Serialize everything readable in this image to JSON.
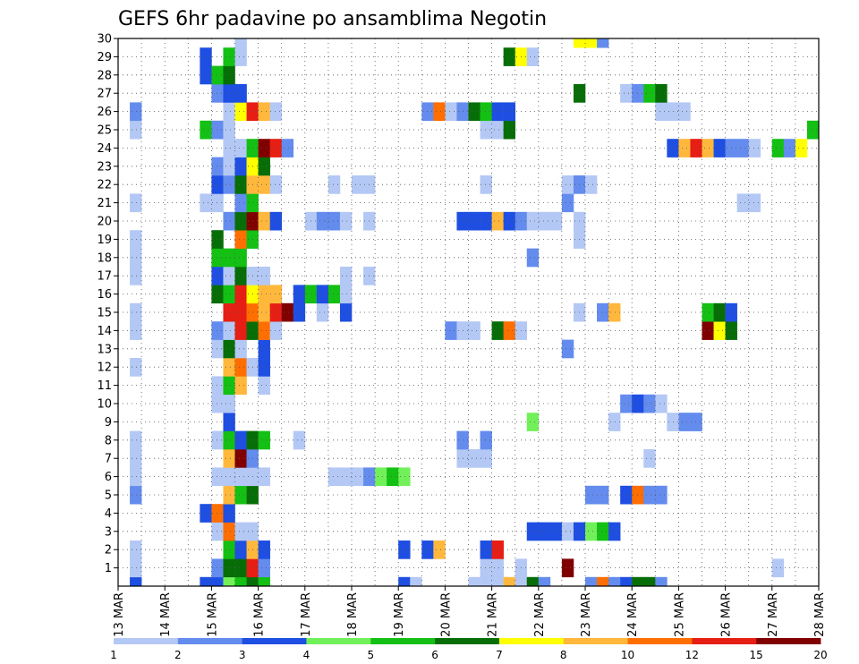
{
  "chart_data": {
    "type": "heatmap",
    "title": "GEFS 6hr padavine po ansamblima Negotin",
    "x_labels": [
      "13 MAR",
      "14 MAR",
      "15 MAR",
      "16 MAR",
      "17 MAR",
      "18 MAR",
      "19 MAR",
      "20 MAR",
      "21 MAR",
      "22 MAR",
      "23 MAR",
      "24 MAR",
      "25 MAR",
      "26 MAR",
      "27 MAR",
      "28 MAR"
    ],
    "y_labels": [
      "1",
      "2",
      "3",
      "4",
      "5",
      "6",
      "7",
      "8",
      "9",
      "10",
      "11",
      "12",
      "13",
      "14",
      "15",
      "16",
      "17",
      "18",
      "19",
      "20",
      "21",
      "22",
      "23",
      "24",
      "25",
      "26",
      "27",
      "28",
      "29",
      "30"
    ],
    "ylim": [
      0,
      30
    ],
    "steps_per_day": 4,
    "grid": true,
    "colorbar": {
      "labels": [
        "1",
        "2",
        "3",
        "4",
        "5",
        "6",
        "7",
        "8",
        "10",
        "12",
        "15",
        "20"
      ],
      "colors": [
        "#b4c8f5",
        "#648cee",
        "#1e4fe2",
        "#72f05a",
        "#13c013",
        "#076e07",
        "#ffff00",
        "#ffb83c",
        "#ff6e00",
        "#e61e14",
        "#800000"
      ]
    },
    "cells": [
      [
        1,
        0,
        3
      ],
      [
        7,
        0,
        3
      ],
      [
        8,
        0,
        3
      ],
      [
        9,
        0,
        4
      ],
      [
        10,
        0,
        5
      ],
      [
        11,
        0,
        6
      ],
      [
        12,
        0,
        5
      ],
      [
        24,
        0,
        3
      ],
      [
        25,
        0,
        1
      ],
      [
        30,
        0,
        1
      ],
      [
        31,
        0,
        1
      ],
      [
        32,
        0,
        1
      ],
      [
        33,
        0,
        8
      ],
      [
        34,
        0,
        1
      ],
      [
        35,
        0,
        6
      ],
      [
        36,
        0,
        2
      ],
      [
        40,
        0,
        2
      ],
      [
        41,
        0,
        9
      ],
      [
        42,
        0,
        2
      ],
      [
        43,
        0,
        3
      ],
      [
        44,
        0,
        6
      ],
      [
        45,
        0,
        6
      ],
      [
        46,
        0,
        2
      ],
      [
        1,
        1,
        1
      ],
      [
        8,
        1,
        2
      ],
      [
        9,
        1,
        6
      ],
      [
        10,
        1,
        6
      ],
      [
        11,
        1,
        10
      ],
      [
        12,
        1,
        2
      ],
      [
        31,
        1,
        1
      ],
      [
        32,
        1,
        1
      ],
      [
        34,
        1,
        1
      ],
      [
        38,
        1,
        11
      ],
      [
        56,
        1,
        1
      ],
      [
        1,
        2,
        1
      ],
      [
        9,
        2,
        5
      ],
      [
        10,
        2,
        3
      ],
      [
        11,
        2,
        8
      ],
      [
        12,
        2,
        3
      ],
      [
        24,
        2,
        3
      ],
      [
        26,
        2,
        3
      ],
      [
        27,
        2,
        8
      ],
      [
        31,
        2,
        3
      ],
      [
        32,
        2,
        10
      ],
      [
        8,
        3,
        1
      ],
      [
        9,
        3,
        9
      ],
      [
        10,
        3,
        1
      ],
      [
        11,
        3,
        1
      ],
      [
        35,
        3,
        3
      ],
      [
        36,
        3,
        3
      ],
      [
        37,
        3,
        3
      ],
      [
        38,
        3,
        1
      ],
      [
        39,
        3,
        3
      ],
      [
        40,
        3,
        4
      ],
      [
        41,
        3,
        5
      ],
      [
        42,
        3,
        3
      ],
      [
        7,
        4,
        3
      ],
      [
        8,
        4,
        9
      ],
      [
        9,
        4,
        3
      ],
      [
        1,
        5,
        2
      ],
      [
        9,
        5,
        8
      ],
      [
        10,
        5,
        5
      ],
      [
        11,
        5,
        6
      ],
      [
        40,
        5,
        2
      ],
      [
        41,
        5,
        2
      ],
      [
        43,
        5,
        3
      ],
      [
        44,
        5,
        9
      ],
      [
        45,
        5,
        2
      ],
      [
        46,
        5,
        2
      ],
      [
        1,
        6,
        1
      ],
      [
        8,
        6,
        1
      ],
      [
        9,
        6,
        1
      ],
      [
        10,
        6,
        1
      ],
      [
        11,
        6,
        1
      ],
      [
        12,
        6,
        1
      ],
      [
        18,
        6,
        1
      ],
      [
        19,
        6,
        1
      ],
      [
        20,
        6,
        1
      ],
      [
        21,
        6,
        2
      ],
      [
        22,
        6,
        4
      ],
      [
        23,
        6,
        5
      ],
      [
        24,
        6,
        4
      ],
      [
        1,
        7,
        1
      ],
      [
        9,
        7,
        8
      ],
      [
        10,
        7,
        11
      ],
      [
        11,
        7,
        2
      ],
      [
        29,
        7,
        1
      ],
      [
        30,
        7,
        1
      ],
      [
        31,
        7,
        1
      ],
      [
        45,
        7,
        1
      ],
      [
        1,
        8,
        1
      ],
      [
        8,
        8,
        1
      ],
      [
        9,
        8,
        5
      ],
      [
        10,
        8,
        3
      ],
      [
        11,
        8,
        6
      ],
      [
        12,
        8,
        5
      ],
      [
        15,
        8,
        1
      ],
      [
        29,
        8,
        2
      ],
      [
        31,
        8,
        2
      ],
      [
        9,
        9,
        3
      ],
      [
        35,
        9,
        4
      ],
      [
        42,
        9,
        1
      ],
      [
        48,
        9,
        2
      ],
      [
        47,
        9,
        1
      ],
      [
        49,
        9,
        2
      ],
      [
        8,
        10,
        1
      ],
      [
        9,
        10,
        1
      ],
      [
        43,
        10,
        2
      ],
      [
        44,
        10,
        3
      ],
      [
        45,
        10,
        2
      ],
      [
        46,
        10,
        1
      ],
      [
        8,
        11,
        1
      ],
      [
        9,
        11,
        5
      ],
      [
        10,
        11,
        8
      ],
      [
        12,
        11,
        1
      ],
      [
        1,
        12,
        1
      ],
      [
        9,
        12,
        8
      ],
      [
        10,
        12,
        9
      ],
      [
        11,
        12,
        1
      ],
      [
        12,
        12,
        3
      ],
      [
        8,
        13,
        1
      ],
      [
        9,
        13,
        6
      ],
      [
        10,
        13,
        1
      ],
      [
        12,
        13,
        3
      ],
      [
        38,
        13,
        2
      ],
      [
        1,
        14,
        1
      ],
      [
        8,
        14,
        2
      ],
      [
        9,
        14,
        1
      ],
      [
        10,
        14,
        10
      ],
      [
        11,
        14,
        6
      ],
      [
        12,
        14,
        9
      ],
      [
        13,
        14,
        1
      ],
      [
        28,
        14,
        2
      ],
      [
        29,
        14,
        1
      ],
      [
        30,
        14,
        1
      ],
      [
        32,
        14,
        6
      ],
      [
        33,
        14,
        9
      ],
      [
        34,
        14,
        1
      ],
      [
        50,
        14,
        11
      ],
      [
        51,
        14,
        7
      ],
      [
        52,
        14,
        6
      ],
      [
        1,
        15,
        1
      ],
      [
        9,
        15,
        10
      ],
      [
        10,
        15,
        10
      ],
      [
        11,
        15,
        9
      ],
      [
        12,
        15,
        8
      ],
      [
        13,
        15,
        10
      ],
      [
        14,
        15,
        11
      ],
      [
        15,
        15,
        3
      ],
      [
        17,
        15,
        1
      ],
      [
        19,
        15,
        3
      ],
      [
        39,
        15,
        1
      ],
      [
        41,
        15,
        2
      ],
      [
        42,
        15,
        8
      ],
      [
        50,
        15,
        5
      ],
      [
        51,
        15,
        6
      ],
      [
        52,
        15,
        3
      ],
      [
        8,
        16,
        6
      ],
      [
        9,
        16,
        5
      ],
      [
        10,
        16,
        10
      ],
      [
        11,
        16,
        7
      ],
      [
        12,
        16,
        8
      ],
      [
        13,
        16,
        8
      ],
      [
        15,
        16,
        3
      ],
      [
        16,
        16,
        5
      ],
      [
        17,
        16,
        3
      ],
      [
        18,
        16,
        5
      ],
      [
        19,
        16,
        1
      ],
      [
        1,
        17,
        1
      ],
      [
        8,
        17,
        3
      ],
      [
        9,
        17,
        1
      ],
      [
        10,
        17,
        6
      ],
      [
        11,
        17,
        1
      ],
      [
        12,
        17,
        1
      ],
      [
        19,
        17,
        1
      ],
      [
        21,
        17,
        1
      ],
      [
        1,
        18,
        1
      ],
      [
        8,
        18,
        5
      ],
      [
        9,
        18,
        5
      ],
      [
        10,
        18,
        5
      ],
      [
        35,
        18,
        2
      ],
      [
        1,
        19,
        1
      ],
      [
        8,
        19,
        6
      ],
      [
        10,
        19,
        9
      ],
      [
        11,
        19,
        5
      ],
      [
        39,
        19,
        1
      ],
      [
        9,
        20,
        2
      ],
      [
        10,
        20,
        6
      ],
      [
        11,
        20,
        11
      ],
      [
        12,
        20,
        8
      ],
      [
        13,
        20,
        3
      ],
      [
        16,
        20,
        1
      ],
      [
        17,
        20,
        2
      ],
      [
        18,
        20,
        2
      ],
      [
        19,
        20,
        1
      ],
      [
        21,
        20,
        1
      ],
      [
        29,
        20,
        3
      ],
      [
        30,
        20,
        3
      ],
      [
        31,
        20,
        3
      ],
      [
        32,
        20,
        8
      ],
      [
        33,
        20,
        3
      ],
      [
        34,
        20,
        2
      ],
      [
        35,
        20,
        1
      ],
      [
        36,
        20,
        1
      ],
      [
        37,
        20,
        1
      ],
      [
        39,
        20,
        1
      ],
      [
        1,
        21,
        1
      ],
      [
        7,
        21,
        1
      ],
      [
        8,
        21,
        1
      ],
      [
        10,
        21,
        2
      ],
      [
        11,
        21,
        5
      ],
      [
        38,
        21,
        2
      ],
      [
        53,
        21,
        1
      ],
      [
        54,
        21,
        1
      ],
      [
        8,
        22,
        3
      ],
      [
        9,
        22,
        2
      ],
      [
        10,
        22,
        6
      ],
      [
        11,
        22,
        8
      ],
      [
        12,
        22,
        8
      ],
      [
        13,
        22,
        1
      ],
      [
        18,
        22,
        1
      ],
      [
        20,
        22,
        1
      ],
      [
        21,
        22,
        1
      ],
      [
        31,
        22,
        1
      ],
      [
        38,
        22,
        1
      ],
      [
        39,
        22,
        2
      ],
      [
        40,
        22,
        1
      ],
      [
        8,
        23,
        2
      ],
      [
        9,
        23,
        1
      ],
      [
        10,
        23,
        3
      ],
      [
        11,
        23,
        7
      ],
      [
        12,
        23,
        6
      ],
      [
        9,
        24,
        1
      ],
      [
        10,
        24,
        1
      ],
      [
        11,
        24,
        5
      ],
      [
        12,
        24,
        11
      ],
      [
        13,
        24,
        10
      ],
      [
        14,
        24,
        2
      ],
      [
        47,
        24,
        3
      ],
      [
        48,
        24,
        8
      ],
      [
        49,
        24,
        10
      ],
      [
        50,
        24,
        8
      ],
      [
        51,
        24,
        3
      ],
      [
        52,
        24,
        2
      ],
      [
        53,
        24,
        2
      ],
      [
        54,
        24,
        1
      ],
      [
        56,
        24,
        5
      ],
      [
        57,
        24,
        2
      ],
      [
        58,
        24,
        7
      ],
      [
        1,
        25,
        1
      ],
      [
        7,
        25,
        5
      ],
      [
        8,
        25,
        2
      ],
      [
        9,
        25,
        1
      ],
      [
        31,
        25,
        1
      ],
      [
        32,
        25,
        1
      ],
      [
        33,
        25,
        6
      ],
      [
        59,
        25,
        5
      ],
      [
        1,
        26,
        2
      ],
      [
        9,
        26,
        1
      ],
      [
        10,
        26,
        7
      ],
      [
        11,
        26,
        10
      ],
      [
        12,
        26,
        8
      ],
      [
        13,
        26,
        1
      ],
      [
        26,
        26,
        2
      ],
      [
        27,
        26,
        9
      ],
      [
        28,
        26,
        1
      ],
      [
        29,
        26,
        2
      ],
      [
        30,
        26,
        6
      ],
      [
        31,
        26,
        5
      ],
      [
        32,
        26,
        3
      ],
      [
        33,
        26,
        3
      ],
      [
        46,
        26,
        1
      ],
      [
        47,
        26,
        1
      ],
      [
        48,
        26,
        1
      ],
      [
        8,
        27,
        2
      ],
      [
        9,
        27,
        3
      ],
      [
        10,
        27,
        3
      ],
      [
        39,
        27,
        6
      ],
      [
        43,
        27,
        1
      ],
      [
        44,
        27,
        2
      ],
      [
        45,
        27,
        5
      ],
      [
        46,
        27,
        6
      ],
      [
        7,
        28,
        3
      ],
      [
        8,
        28,
        5
      ],
      [
        9,
        28,
        6
      ],
      [
        7,
        29,
        3
      ],
      [
        9,
        29,
        5
      ],
      [
        10,
        29,
        1
      ],
      [
        33,
        29,
        6
      ],
      [
        34,
        29,
        7
      ],
      [
        35,
        29,
        1
      ],
      [
        10,
        30,
        1
      ],
      [
        39,
        30,
        7
      ],
      [
        40,
        30,
        7
      ],
      [
        41,
        30,
        2
      ]
    ]
  }
}
